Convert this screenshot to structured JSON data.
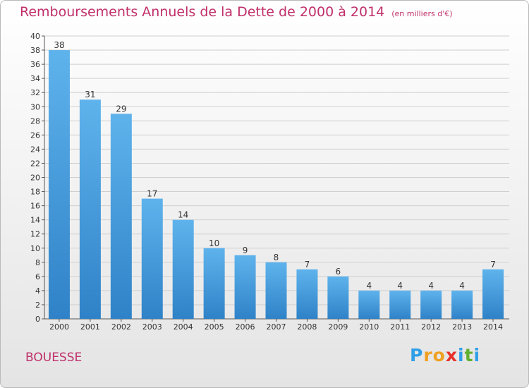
{
  "title": "Remboursements Annuels de la Dette de 2000 à 2014",
  "unit": "(en milliers d'€)",
  "place": "BOUESSE",
  "logo": {
    "letters": [
      "P",
      "r",
      "o",
      "x",
      "i",
      "t",
      "i"
    ],
    "colors": [
      "#2f9fe8",
      "#f0a020",
      "#f0a020",
      "#e8302a",
      "#2f9fe8",
      "#60b030",
      "#2f9fe8"
    ]
  },
  "colors": {
    "title": "#c0306a",
    "bar_top": "#5fb3ec",
    "bar_bottom": "#2f82c7",
    "grid": "#cfcfcf"
  },
  "chart_data": {
    "type": "bar",
    "title": "Remboursements Annuels de la Dette de 2000 à 2014",
    "xlabel": "",
    "ylabel": "",
    "ylim": [
      0,
      40
    ],
    "ytick_step": 2,
    "grid": true,
    "categories": [
      "2000",
      "2001",
      "2002",
      "2003",
      "2004",
      "2005",
      "2006",
      "2007",
      "2008",
      "2009",
      "2010",
      "2011",
      "2012",
      "2013",
      "2014"
    ],
    "values": [
      38,
      31,
      29,
      17,
      14,
      10,
      9,
      8,
      7,
      6,
      4,
      4,
      4,
      4,
      7
    ]
  }
}
